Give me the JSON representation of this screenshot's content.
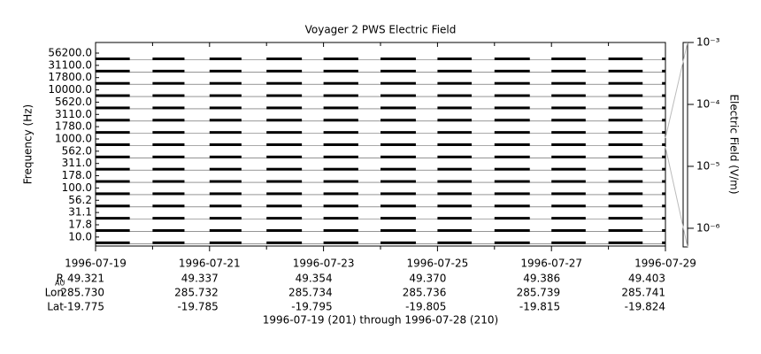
{
  "chart_data": {
    "type": "spectrogram-stack",
    "title": "Voyager 2 PWS Electric Field",
    "ylabel": "Frequency (Hz)",
    "zlabel": "Electric Field (V/m)",
    "footer": "1996-07-19 (201) through 1996-07-28 (210)",
    "channels": [
      "56200.0",
      "31100.0",
      "17800.0",
      "10000.0",
      "5620.0",
      "3110.0",
      "1780.0",
      "1000.0",
      "562.0",
      "311.0",
      "178.0",
      "100.0",
      "56.2",
      "31.1",
      "17.8",
      "10.0"
    ],
    "xlim": [
      201,
      211
    ],
    "xticks": [
      {
        "value": 201,
        "label": "1996-07-19"
      },
      {
        "value": 203,
        "label": "1996-07-21"
      },
      {
        "value": 205,
        "label": "1996-07-23"
      },
      {
        "value": 207,
        "label": "1996-07-25"
      },
      {
        "value": 209,
        "label": "1996-07-27"
      },
      {
        "value": 211,
        "label": "1996-07-29"
      }
    ],
    "xminorticks": [
      202,
      204,
      206,
      208,
      210
    ],
    "segments": [
      [
        201,
        201.6
      ],
      [
        202,
        202.56
      ],
      [
        203,
        203.56
      ],
      [
        204,
        204.62
      ],
      [
        205,
        205.61
      ],
      [
        206,
        206.62
      ],
      [
        207,
        207.6
      ],
      [
        208,
        208.62
      ],
      [
        209,
        209.6
      ],
      [
        210,
        210.6
      ],
      [
        210.94,
        211
      ]
    ],
    "zlim": [
      5e-07,
      0.001
    ],
    "zlog": true,
    "zticks": [
      {
        "value": 0.001,
        "label": "10⁻³"
      },
      {
        "value": 0.0001,
        "label": "10⁻⁴"
      },
      {
        "value": 1e-05,
        "label": "10⁻⁵"
      },
      {
        "value": 1e-06,
        "label": "10⁻⁶"
      }
    ],
    "ephemeris": {
      "labels": [
        "R",
        "Lon",
        "Lat"
      ],
      "r_subscript": "AU",
      "rows": [
        [
          "49.321",
          "49.337",
          "49.354",
          "49.370",
          "49.386",
          "49.403"
        ],
        [
          "285.730",
          "285.732",
          "285.734",
          "285.736",
          "285.739",
          "285.741"
        ],
        [
          "-19.775",
          "-19.785",
          "-19.795",
          "-19.805",
          "-19.815",
          "-19.824"
        ]
      ]
    }
  }
}
